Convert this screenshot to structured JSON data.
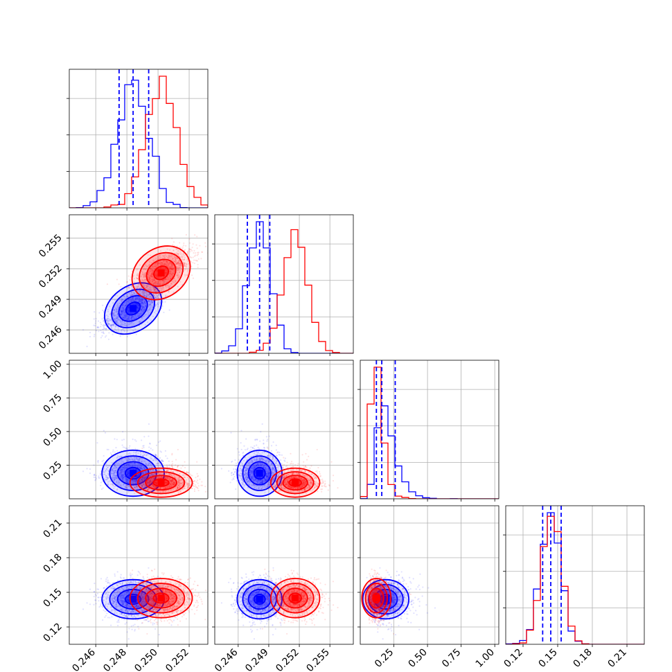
{
  "chart_data": {
    "type": "corner",
    "description_params": 4,
    "colors": {
      "series_a": "#0000ff",
      "series_b": "#ff0000"
    },
    "grid": true,
    "series": [
      {
        "color": "#0000ff",
        "mean": [
          0.2484,
          0.2481,
          0.19,
          0.144
        ],
        "sd": [
          0.001,
          0.0011,
          0.07,
          0.0085
        ],
        "quantiles": [
          [
            0.2475,
            0.2484,
            0.2494
          ],
          [
            0.2469,
            0.2481,
            0.2491
          ],
          [
            0.12,
            0.16,
            0.26
          ],
          [
            0.137,
            0.144,
            0.153
          ]
        ]
      },
      {
        "color": "#ff0000",
        "mean": [
          0.2502,
          0.2516,
          0.12,
          0.145
        ],
        "sd": [
          0.001,
          0.0012,
          0.05,
          0.0085
        ]
      }
    ],
    "axes_ranges": [
      [
        0.2443,
        0.2532
      ],
      [
        0.2437,
        0.2573
      ],
      [
        0.0,
        1.03
      ],
      [
        0.105,
        0.225
      ]
    ],
    "tick_labels": [
      [
        "0.246",
        "0.248",
        "0.250",
        "0.252"
      ],
      [
        "0.246",
        "0.249",
        "0.252",
        "0.255"
      ],
      [
        "0.25",
        "0.50",
        "0.75",
        "1.00"
      ],
      [
        "0.12",
        "0.15",
        "0.18",
        "0.21"
      ]
    ],
    "ticks": [
      [
        0.246,
        0.248,
        0.25,
        0.252
      ],
      [
        0.246,
        0.249,
        0.252,
        0.255
      ],
      [
        0.25,
        0.5,
        0.75,
        1.0
      ],
      [
        0.12,
        0.15,
        0.18,
        0.21
      ]
    ]
  }
}
